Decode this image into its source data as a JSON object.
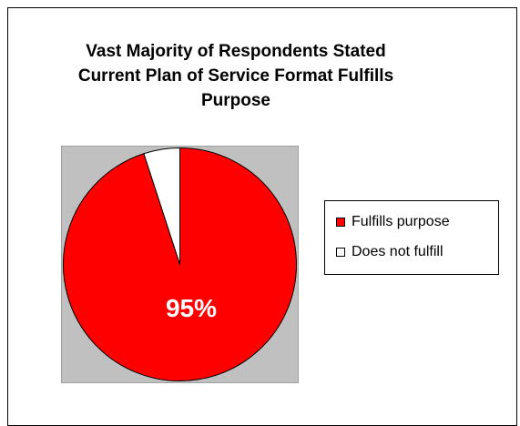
{
  "chart_data": {
    "type": "pie",
    "title_lines": [
      "Vast Majority of Respondents Stated",
      "Current Plan of Service Format Fulfills",
      "Purpose"
    ],
    "categories": [
      "Fulfills purpose",
      "Does not fulfill"
    ],
    "values": [
      95,
      5
    ],
    "data_labels": [
      "95%"
    ],
    "colors": [
      "#ff0000",
      "#ffffff"
    ],
    "plot_background": "#c0c0c0",
    "legend_position": "right"
  }
}
